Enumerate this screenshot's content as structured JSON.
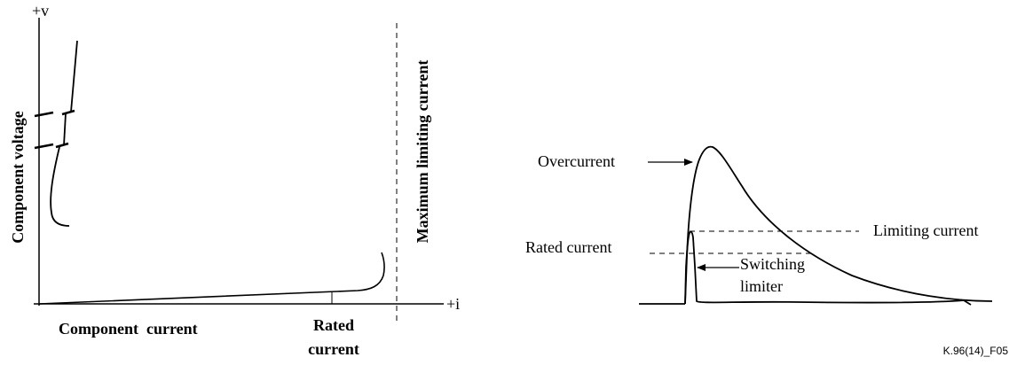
{
  "left_diagram": {
    "y_axis_tip": "+v",
    "x_axis_tip": "+i",
    "y_axis_label": "Component voltage",
    "x_axis_label": "Component  current",
    "rated_label_line1": "Rated",
    "rated_label_line2": "current",
    "max_limit_label": "Maximum limiting current"
  },
  "right_diagram": {
    "overcurrent_label": "Overcurrent",
    "limiting_current_label": "Limiting current",
    "rated_current_label": "Rated current",
    "switching_line1": "Switching",
    "switching_line2": "limiter"
  },
  "figure_code": "K.96(14)_F05"
}
